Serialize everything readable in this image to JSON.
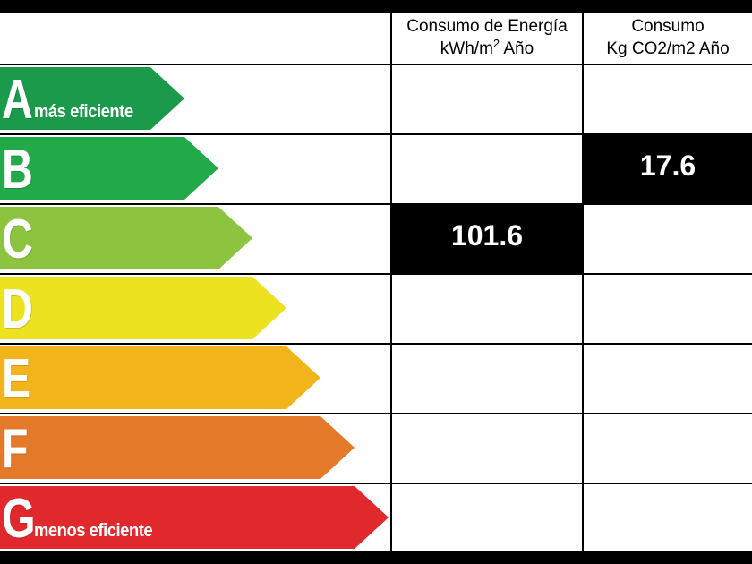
{
  "header": {
    "energy_line1": "Consumo de Energía",
    "energy_line2_prefix": "kWh/m",
    "energy_line2_sup": "2",
    "energy_line2_suffix": " Año",
    "co2_line1": "Consumo",
    "co2_line2": "Kg CO2/m2 Año"
  },
  "classes": [
    {
      "letter": "A",
      "sub": "más eficiente",
      "color": "#1a9a4a"
    },
    {
      "letter": "B",
      "sub": "",
      "color": "#21a94a"
    },
    {
      "letter": "C",
      "sub": "",
      "color": "#8cc43f"
    },
    {
      "letter": "D",
      "sub": "",
      "color": "#ece21f"
    },
    {
      "letter": "E",
      "sub": "",
      "color": "#f2b41a"
    },
    {
      "letter": "F",
      "sub": "",
      "color": "#e5792a"
    },
    {
      "letter": "G",
      "sub": "menos eficiente",
      "color": "#e1282c"
    }
  ],
  "ratings": {
    "energy": {
      "class": "C",
      "value": "101.6"
    },
    "co2": {
      "class": "B",
      "value": "17.6"
    }
  }
}
